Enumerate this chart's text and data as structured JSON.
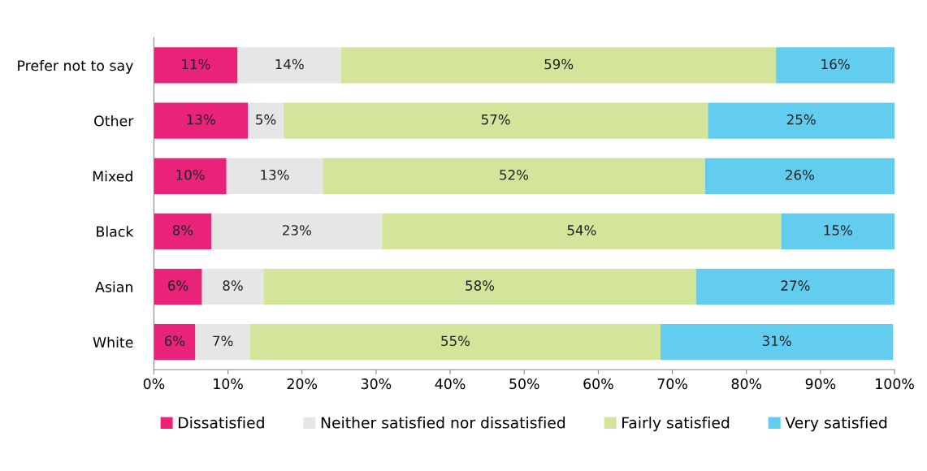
{
  "chart_data": {
    "type": "bar",
    "orientation": "horizontal",
    "stacked": true,
    "categories": [
      "Prefer not to say",
      "Other",
      "Mixed",
      "Black",
      "Asian",
      "White"
    ],
    "series": [
      {
        "name": "Dissatisfied",
        "color": "#e9237a",
        "values": [
          11.3,
          12.7,
          9.8,
          7.8,
          6.5,
          5.6
        ],
        "value_labels": [
          "11%",
          "13%",
          "10%",
          "8%",
          "6%",
          "6%"
        ]
      },
      {
        "name": "Neither satisfied nor dissatisfied",
        "color": "#e6e6e6",
        "values": [
          14.0,
          4.8,
          13.0,
          23.0,
          8.3,
          7.4
        ],
        "value_labels": [
          "14%",
          "5%",
          "13%",
          "23%",
          "8%",
          "7%"
        ]
      },
      {
        "name": "Fairly satisfied",
        "color": "#d3e59b",
        "values": [
          58.7,
          57.3,
          51.6,
          53.9,
          58.4,
          55.4
        ],
        "value_labels": [
          "59%",
          "57%",
          "52%",
          "54%",
          "58%",
          "55%"
        ]
      },
      {
        "name": "Very satisfied",
        "color": "#63cdf0",
        "values": [
          16.0,
          25.2,
          25.6,
          15.3,
          26.8,
          31.4
        ],
        "value_labels": [
          "16%",
          "25%",
          "26%",
          "15%",
          "27%",
          "31%"
        ]
      }
    ],
    "xlim": [
      0,
      100
    ],
    "xticks": [
      {
        "value": 0,
        "label": "0%"
      },
      {
        "value": 10,
        "label": "10%"
      },
      {
        "value": 20,
        "label": "20%"
      },
      {
        "value": 30,
        "label": "30%"
      },
      {
        "value": 40,
        "label": "40%"
      },
      {
        "value": 50,
        "label": "50%"
      },
      {
        "value": 60,
        "label": "60%"
      },
      {
        "value": 70,
        "label": "70%"
      },
      {
        "value": 80,
        "label": "80%"
      },
      {
        "value": 90,
        "label": "90%"
      },
      {
        "value": 100,
        "label": "100%"
      }
    ],
    "grid": false,
    "legend": "bottom"
  }
}
